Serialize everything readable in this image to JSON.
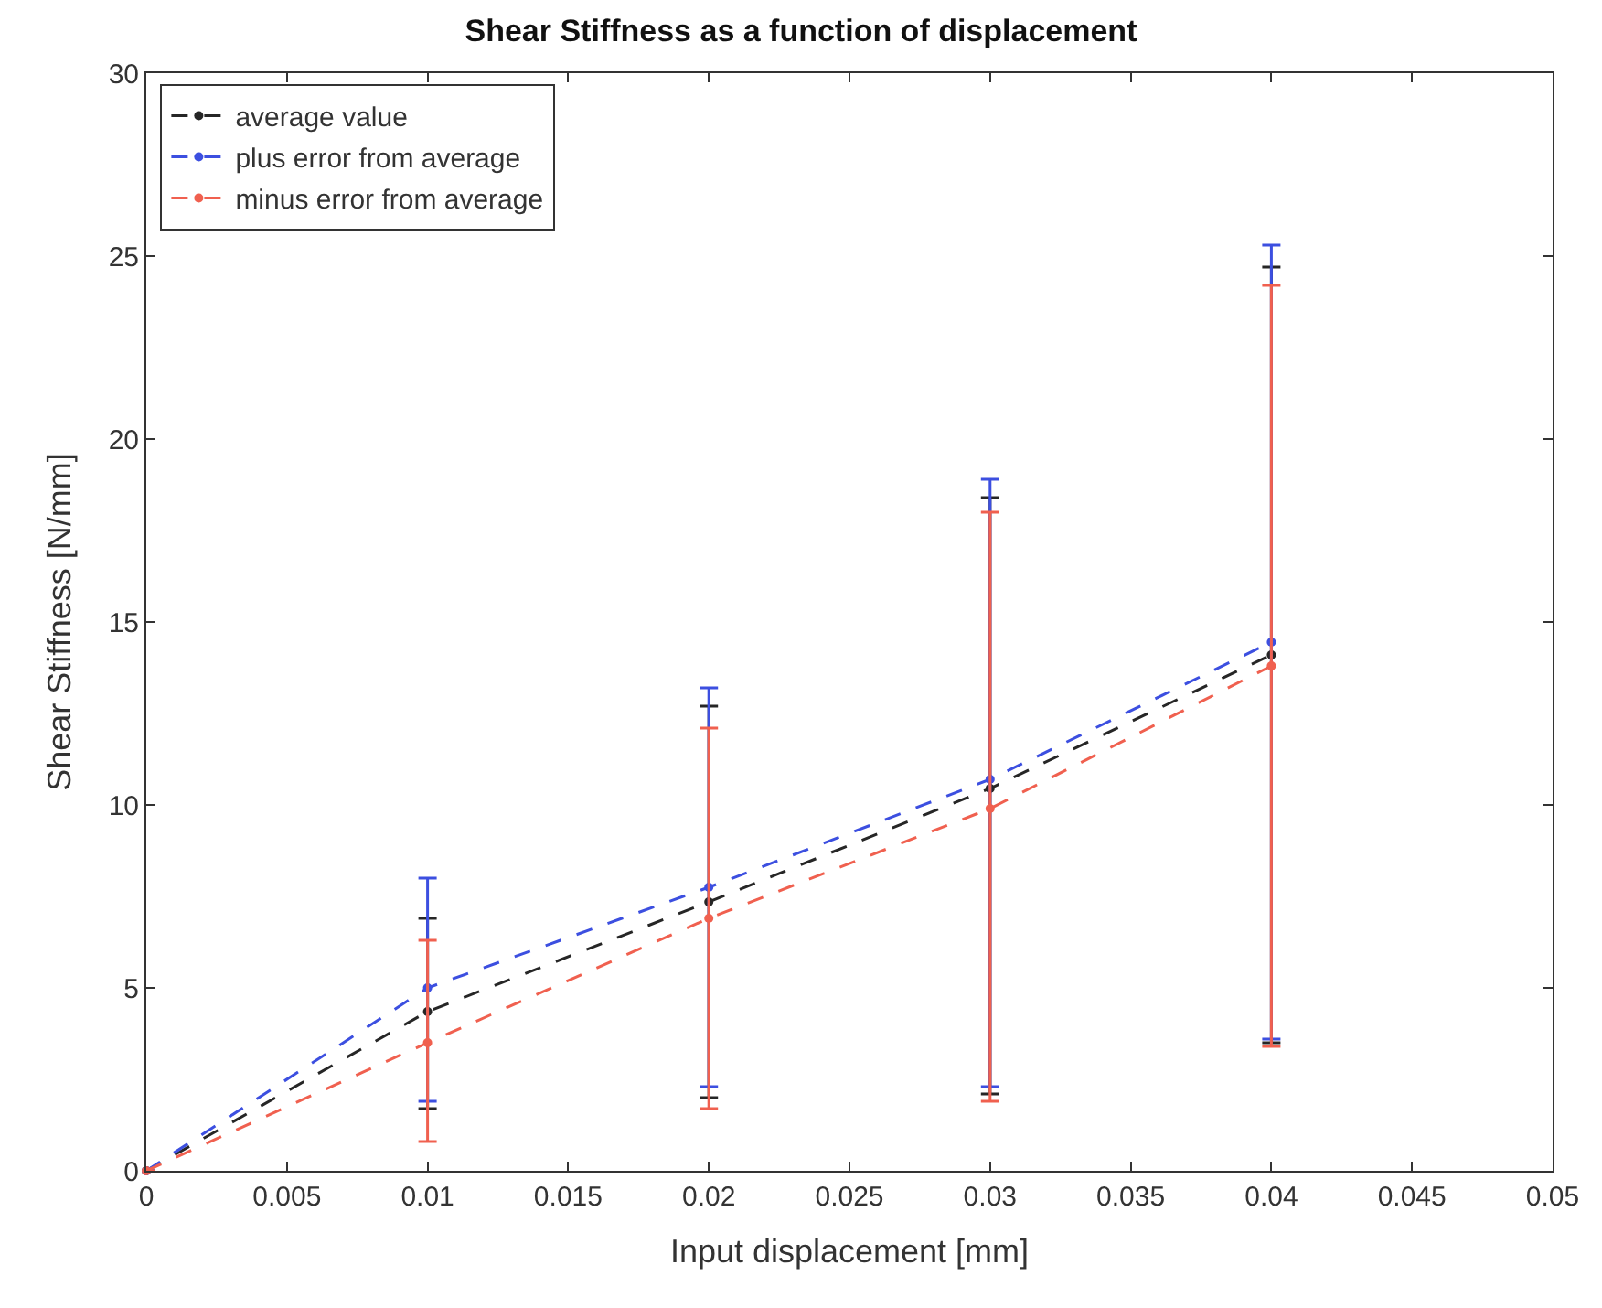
{
  "chart_data": {
    "type": "line",
    "title": "Shear Stiffness as a function of displacement",
    "xlabel": "Input displacement [mm]",
    "ylabel": "Shear Stiffness [N/mm]",
    "x": [
      0,
      0.01,
      0.02,
      0.03,
      0.04
    ],
    "series": [
      {
        "name": "average value",
        "color": "#262626",
        "values": [
          0,
          4.35,
          7.35,
          10.45,
          14.1
        ],
        "errors": [
          null,
          [
            1.7,
            6.9
          ],
          [
            2.0,
            12.7
          ],
          [
            2.1,
            18.4
          ],
          [
            3.5,
            24.7
          ]
        ]
      },
      {
        "name": "plus error from average",
        "color": "#3c4fe0",
        "values": [
          0,
          5.0,
          7.75,
          10.7,
          14.45
        ],
        "errors": [
          null,
          [
            1.9,
            8.0
          ],
          [
            2.3,
            13.2
          ],
          [
            2.3,
            18.9
          ],
          [
            3.6,
            25.3
          ]
        ]
      },
      {
        "name": "minus error from average",
        "color": "#f0604f",
        "values": [
          0,
          3.5,
          6.9,
          9.9,
          13.8
        ],
        "errors": [
          null,
          [
            0.8,
            6.3
          ],
          [
            1.7,
            12.1
          ],
          [
            1.9,
            18.0
          ],
          [
            3.4,
            24.2
          ]
        ]
      }
    ],
    "xlim": [
      0,
      0.05
    ],
    "xticks": [
      0,
      0.005,
      0.01,
      0.015,
      0.02,
      0.025,
      0.03,
      0.035,
      0.04,
      0.045,
      0.05
    ],
    "ylim": [
      0,
      30
    ],
    "yticks": [
      0,
      5,
      10,
      15,
      20,
      25,
      30
    ],
    "grid": false,
    "legend": "top left",
    "marker": "circle",
    "line_style": "dashed"
  }
}
